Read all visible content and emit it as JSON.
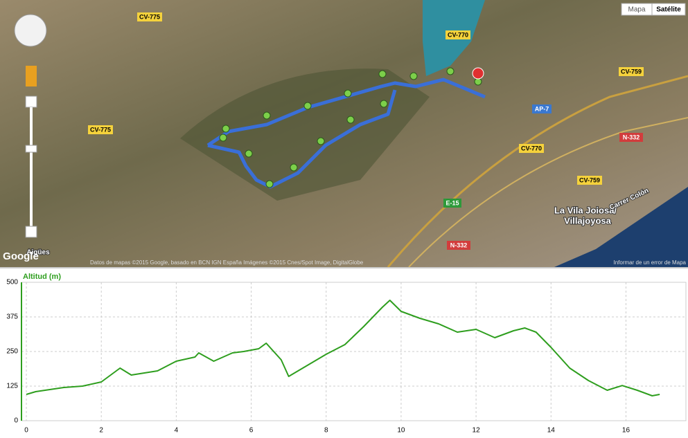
{
  "map": {
    "buttons": [
      "Mapa",
      "Satélite"
    ],
    "roads": [
      "CV-775",
      "CV-775",
      "CV-770",
      "CV-759",
      "AP-7",
      "CV-770",
      "N-332",
      "CV-759",
      "E-15",
      "N-332"
    ],
    "places": [
      "La Vila Joiosa/",
      "Villajoyosa",
      "Carrer Colón",
      "Aigües"
    ],
    "logo": "Google",
    "attribution": "Datos de mapas ©2015 Google, basado en BCN IGN España Imágenes ©2015 Cnes/Spot Image, DigitalGlobe",
    "report": "Informar de un error de Mapa"
  },
  "chart_data": {
    "type": "line",
    "title": "Altitud (m)",
    "x": [
      0,
      0.25,
      0.5,
      1,
      1.5,
      2,
      2.5,
      2.8,
      3.5,
      4,
      4.5,
      4.6,
      5,
      5.5,
      5.8,
      6.2,
      6.4,
      6.8,
      7,
      7.5,
      8,
      8.5,
      9,
      9.5,
      9.7,
      10,
      10.5,
      11,
      11.5,
      12,
      12.5,
      13,
      13.3,
      13.6,
      14,
      14.5,
      15,
      15.5,
      15.9,
      16.3,
      16.7,
      16.9
    ],
    "series": [
      {
        "name": "Altitud (m)",
        "color": "#2e9e1e",
        "values": [
          95,
          105,
          110,
          120,
          125,
          140,
          190,
          165,
          180,
          215,
          230,
          245,
          215,
          245,
          250,
          260,
          280,
          220,
          160,
          200,
          240,
          275,
          340,
          410,
          435,
          395,
          370,
          350,
          320,
          330,
          300,
          325,
          335,
          320,
          265,
          190,
          145,
          110,
          127,
          110,
          90,
          95
        ]
      }
    ],
    "xlim": [
      -0.13,
      17.6
    ],
    "ylim": [
      0,
      500
    ],
    "xticks": [
      0,
      2,
      4,
      6,
      8,
      10,
      12,
      14,
      16
    ],
    "yticks": [
      0,
      125,
      250,
      375,
      500
    ],
    "grid": true
  }
}
